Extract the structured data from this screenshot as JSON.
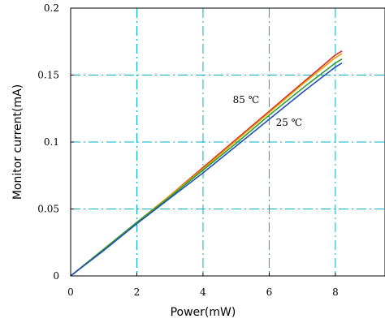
{
  "chart_data": {
    "type": "line",
    "title": "",
    "xlabel": "Power(mW)",
    "ylabel": "Monitor current(mA)",
    "xlim": [
      0,
      9.5
    ],
    "ylim": [
      0,
      0.2
    ],
    "x_ticks": [
      0,
      2,
      4,
      6,
      8
    ],
    "x_tick_labels": [
      "0",
      "2",
      "4",
      "6",
      "8"
    ],
    "y_ticks": [
      0,
      0.05,
      0.1,
      0.15,
      0.2
    ],
    "y_tick_labels": [
      "0",
      "0.05",
      "0.1",
      "0.15",
      "0.2"
    ],
    "grid": true,
    "grid_color": "#00b0c8",
    "grid_style": "dash-dot",
    "legend": "none",
    "annotations": [
      {
        "text": "85 ℃",
        "x": 5.3,
        "y": 0.129
      },
      {
        "text": "25 ℃",
        "x": 6.6,
        "y": 0.112
      }
    ],
    "series": [
      {
        "color": "#d62728",
        "x": [
          0,
          1,
          2,
          3,
          4,
          5,
          6,
          7,
          8,
          8.2
        ],
        "y": [
          0,
          0.02,
          0.04,
          0.06,
          0.081,
          0.102,
          0.123,
          0.144,
          0.165,
          0.168
        ]
      },
      {
        "color": "#e69f00",
        "x": [
          0,
          1,
          2,
          3,
          4,
          5,
          6,
          7,
          8,
          8.2
        ],
        "y": [
          0,
          0.02,
          0.04,
          0.06,
          0.08,
          0.101,
          0.122,
          0.143,
          0.163,
          0.166
        ]
      },
      {
        "color": "#2ca02c",
        "x": [
          0,
          1,
          2,
          3,
          4,
          5,
          6,
          7,
          8,
          8.2
        ],
        "y": [
          0,
          0.02,
          0.04,
          0.059,
          0.079,
          0.099,
          0.12,
          0.14,
          0.159,
          0.162
        ]
      },
      {
        "color": "#1f4fbf",
        "x": [
          0,
          1,
          2,
          3,
          4,
          5,
          6,
          7,
          8,
          8.2
        ],
        "y": [
          0,
          0.019,
          0.039,
          0.058,
          0.077,
          0.097,
          0.117,
          0.137,
          0.156,
          0.159
        ]
      }
    ]
  }
}
